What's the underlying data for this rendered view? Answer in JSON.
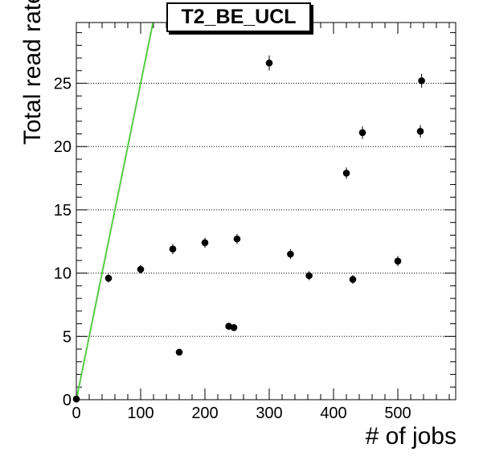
{
  "chart_data": {
    "type": "scatter",
    "title": "T2_BE_UCL",
    "xlabel": "# of jobs",
    "ylabel": "Total read rate [MB/s]",
    "xlim": [
      0,
      590
    ],
    "ylim": [
      0,
      29.8
    ],
    "xticks": [
      0,
      100,
      200,
      300,
      400,
      500
    ],
    "yticks": [
      0,
      5,
      10,
      15,
      20,
      25
    ],
    "y_grid": "dotted",
    "points": [
      {
        "x": 0,
        "y": 0.05,
        "err": 0.1
      },
      {
        "x": 50,
        "y": 9.6,
        "err": 0.35
      },
      {
        "x": 100,
        "y": 10.3,
        "err": 0.35
      },
      {
        "x": 150,
        "y": 11.9,
        "err": 0.4
      },
      {
        "x": 160,
        "y": 3.75,
        "err": 0.2
      },
      {
        "x": 200,
        "y": 12.4,
        "err": 0.4
      },
      {
        "x": 237,
        "y": 5.8,
        "err": 0.25
      },
      {
        "x": 245,
        "y": 5.7,
        "err": 0.25
      },
      {
        "x": 250,
        "y": 12.7,
        "err": 0.4
      },
      {
        "x": 300,
        "y": 26.6,
        "err": 0.6
      },
      {
        "x": 333,
        "y": 11.5,
        "err": 0.4
      },
      {
        "x": 362,
        "y": 9.8,
        "err": 0.35
      },
      {
        "x": 420,
        "y": 17.9,
        "err": 0.45
      },
      {
        "x": 430,
        "y": 9.5,
        "err": 0.35
      },
      {
        "x": 445,
        "y": 21.1,
        "err": 0.5
      },
      {
        "x": 500,
        "y": 10.95,
        "err": 0.4
      },
      {
        "x": 535,
        "y": 21.2,
        "err": 0.5
      },
      {
        "x": 537,
        "y": 25.2,
        "err": 0.55
      }
    ],
    "reference_line": {
      "color": "#55cc44",
      "from": [
        0,
        0
      ],
      "slope": 0.25
    }
  }
}
